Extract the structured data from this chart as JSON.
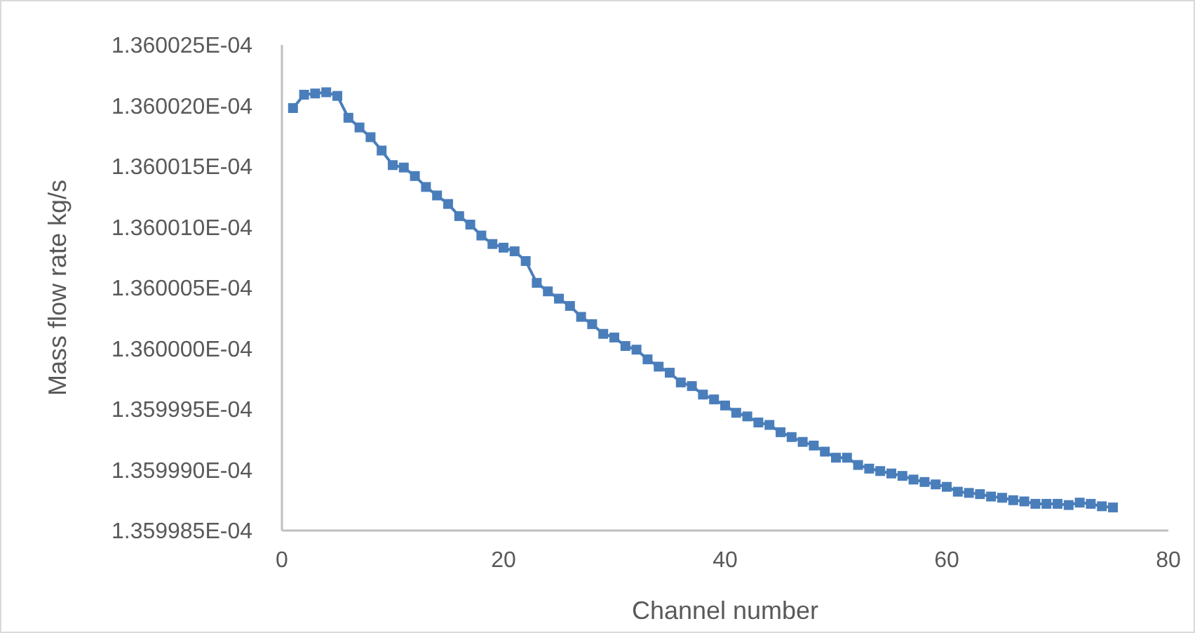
{
  "chart_data": {
    "type": "line",
    "xlabel": "Channel number",
    "ylabel": "Mass flow rate kg/s",
    "x": [
      1,
      2,
      3,
      4,
      5,
      6,
      7,
      8,
      9,
      10,
      11,
      12,
      13,
      14,
      15,
      16,
      17,
      18,
      19,
      20,
      21,
      22,
      23,
      24,
      25,
      26,
      27,
      28,
      29,
      30,
      31,
      32,
      33,
      34,
      35,
      36,
      37,
      38,
      39,
      40,
      41,
      42,
      43,
      44,
      45,
      46,
      47,
      48,
      49,
      50,
      51,
      52,
      53,
      54,
      55,
      56,
      57,
      58,
      59,
      60,
      61,
      62,
      63,
      64,
      65,
      66,
      67,
      68,
      69,
      70,
      71,
      72,
      73,
      74,
      75
    ],
    "series": [
      {
        "color": "#4a7ebb",
        "values": [
          0.00013600198,
          0.00013600209,
          0.0001360021,
          0.00013600211,
          0.00013600208,
          0.0001360019,
          0.00013600182,
          0.00013600174,
          0.00013600163,
          0.00013600151,
          0.00013600149,
          0.00013600142,
          0.00013600133,
          0.00013600126,
          0.00013600119,
          0.00013600109,
          0.00013600102,
          0.00013600093,
          0.00013600086,
          0.00013600083,
          0.0001360008,
          0.00013600072,
          0.00013600054,
          0.00013600047,
          0.00013600041,
          0.00013600035,
          0.00013600026,
          0.0001360002,
          0.00013600012,
          0.00013600009,
          0.00013600002,
          0.00013599999,
          0.00013599991,
          0.00013599985,
          0.0001359998,
          0.00013599972,
          0.00013599969,
          0.00013599962,
          0.00013599958,
          0.00013599953,
          0.00013599947,
          0.00013599944,
          0.00013599939,
          0.00013599937,
          0.00013599931,
          0.00013599927,
          0.00013599923,
          0.0001359992,
          0.00013599915,
          0.0001359991,
          0.0001359991,
          0.00013599904,
          0.00013599901,
          0.00013599899,
          0.00013599897,
          0.00013599895,
          0.00013599892,
          0.0001359989,
          0.00013599888,
          0.00013599886,
          0.00013599882,
          0.00013599881,
          0.0001359988,
          0.00013599878,
          0.00013599877,
          0.00013599875,
          0.00013599874,
          0.00013599872,
          0.00013599872,
          0.00013599872,
          0.00013599871,
          0.00013599873,
          0.00013599872,
          0.0001359987,
          0.00013599869
        ]
      }
    ],
    "xlim": [
      0,
      80
    ],
    "xticks": [
      0,
      20,
      40,
      60,
      80
    ],
    "ylim": [
      0.0001359985,
      0.0001360025
    ],
    "yticks": [
      {
        "value": 0.0001359985,
        "label": "1.359985E-04"
      },
      {
        "value": 0.000135999,
        "label": "1.359990E-04"
      },
      {
        "value": 0.0001359995,
        "label": "1.359995E-04"
      },
      {
        "value": 0.000136,
        "label": "1.360000E-04"
      },
      {
        "value": 0.0001360005,
        "label": "1.360005E-04"
      },
      {
        "value": 0.000136001,
        "label": "1.360010E-04"
      },
      {
        "value": 0.0001360015,
        "label": "1.360015E-04"
      },
      {
        "value": 0.000136002,
        "label": "1.360020E-04"
      },
      {
        "value": 0.0001360025,
        "label": "1.360025E-04"
      }
    ],
    "grid": false,
    "marker": "square",
    "line_style": "solid"
  }
}
